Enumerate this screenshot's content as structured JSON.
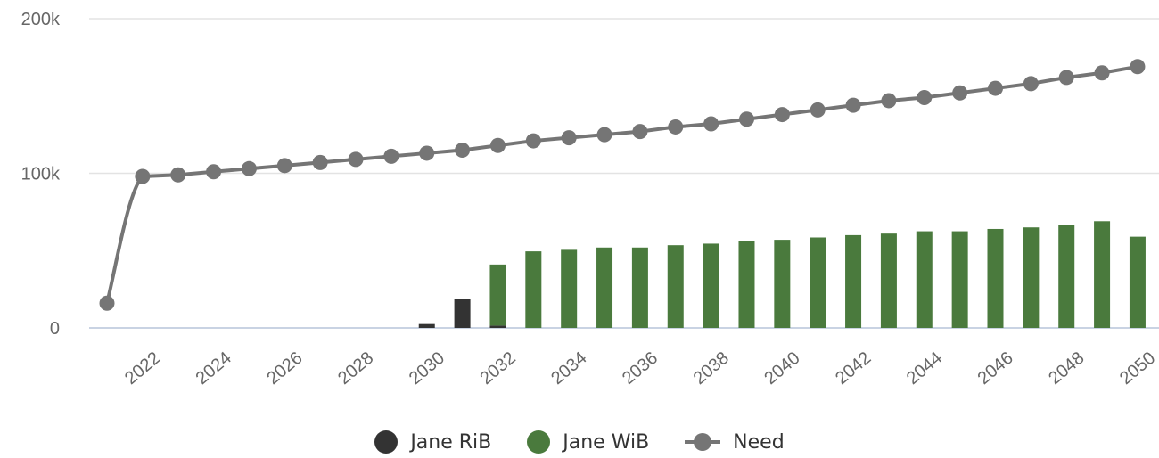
{
  "chart_data": {
    "type": "bar",
    "x": [
      2021,
      2022,
      2023,
      2024,
      2025,
      2026,
      2027,
      2028,
      2029,
      2030,
      2031,
      2032,
      2033,
      2034,
      2035,
      2036,
      2037,
      2038,
      2039,
      2040,
      2041,
      2042,
      2043,
      2044,
      2045,
      2046,
      2047,
      2048,
      2049,
      2050
    ],
    "x_tick_labels": [
      "2022",
      "2024",
      "2026",
      "2028",
      "2030",
      "2032",
      "2034",
      "2036",
      "2038",
      "2040",
      "2042",
      "2044",
      "2046",
      "2048",
      "2050"
    ],
    "y_tick_labels": [
      "0",
      "100k",
      "200k"
    ],
    "ylim": [
      0,
      200000
    ],
    "grid": true,
    "legend_position": "bottom",
    "series": [
      {
        "name": "Jane RiB",
        "type": "bar",
        "stack": "income",
        "color": "#333333",
        "values": [
          0,
          0,
          0,
          0,
          0,
          0,
          0,
          0,
          0,
          2500,
          18500,
          1500,
          0,
          0,
          0,
          0,
          0,
          0,
          0,
          0,
          0,
          0,
          0,
          0,
          0,
          0,
          0,
          0,
          0,
          0
        ]
      },
      {
        "name": "Jane WiB",
        "type": "bar",
        "stack": "income",
        "color": "#4a7a3d",
        "values": [
          0,
          0,
          0,
          0,
          0,
          0,
          0,
          0,
          0,
          0,
          0,
          39500,
          49500,
          50500,
          52000,
          52000,
          53500,
          54500,
          56000,
          57000,
          58500,
          60000,
          61000,
          62500,
          62500,
          64000,
          65000,
          66500,
          69000,
          59000
        ]
      },
      {
        "name": "Need",
        "type": "line",
        "color": "#757575",
        "values": [
          16000,
          98000,
          99000,
          101000,
          103000,
          105000,
          107000,
          109000,
          111000,
          113000,
          115000,
          118000,
          121000,
          123000,
          125000,
          127000,
          130000,
          132000,
          135000,
          138000,
          141000,
          144000,
          147000,
          149000,
          152000,
          155000,
          158000,
          162000,
          165000,
          169000
        ]
      }
    ]
  }
}
